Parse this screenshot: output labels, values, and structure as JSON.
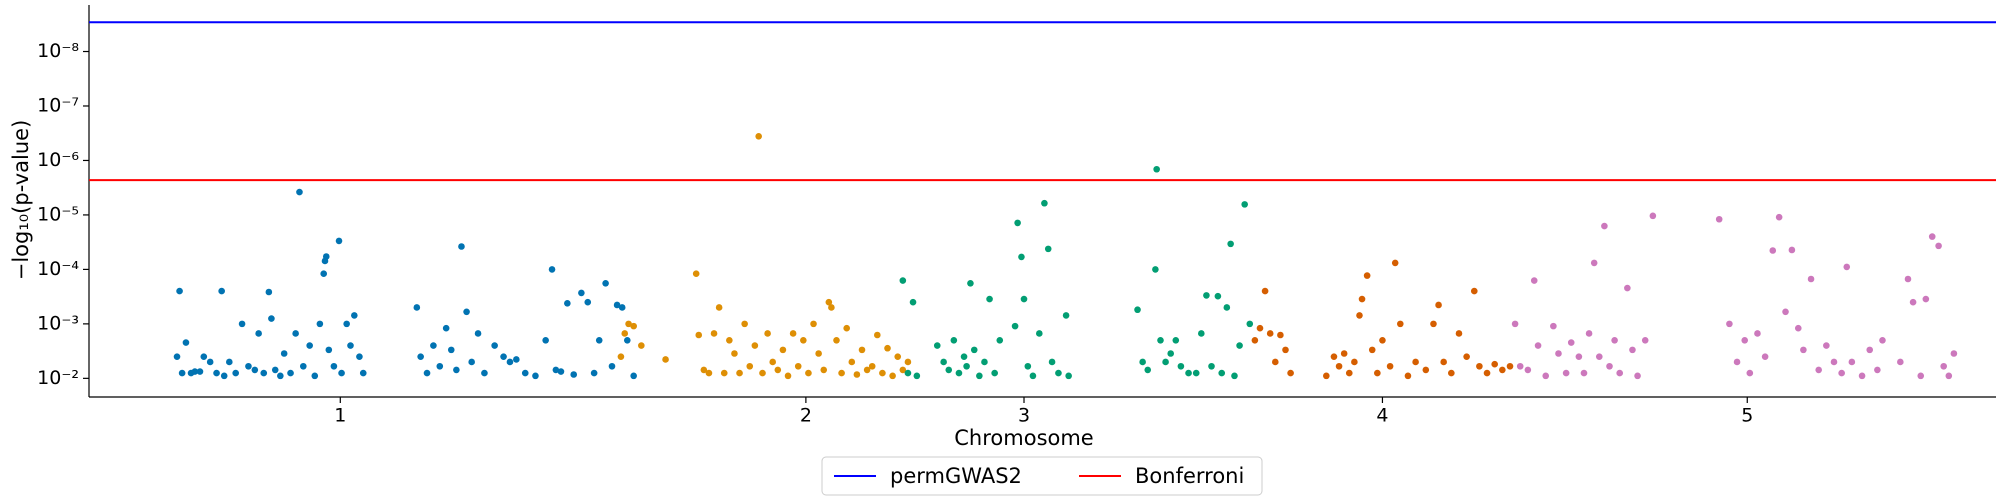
{
  "chart_data": {
    "type": "scatter",
    "xlabel": "Chromosome",
    "ylabel": "−log₁₀(p-value)",
    "yscale": "log",
    "xlim": [
      70,
      1565
    ],
    "ylim": [
      0.022,
      1.4e-09
    ],
    "xticks": [
      {
        "value": 267,
        "label": "1"
      },
      {
        "value": 632,
        "label": "2"
      },
      {
        "value": 803,
        "label": "3"
      },
      {
        "value": 1084,
        "label": "4"
      },
      {
        "value": 1370,
        "label": "5"
      }
    ],
    "yticks": [
      {
        "value": 0.01,
        "label": "10⁻²"
      },
      {
        "value": 0.001,
        "label": "10⁻³"
      },
      {
        "value": 0.0001,
        "label": "10⁻⁴"
      },
      {
        "value": 1e-05,
        "label": "10⁻⁵"
      },
      {
        "value": 1e-06,
        "label": "10⁻⁶"
      },
      {
        "value": 1e-07,
        "label": "10⁻⁷"
      },
      {
        "value": 1e-08,
        "label": "10⁻⁸"
      }
    ],
    "legend": "below",
    "hlines": [
      {
        "name": "permGWAS2",
        "color": "#0000ff",
        "value": 2.9e-09
      },
      {
        "name": "Bonferroni",
        "color": "#ff0000",
        "value": 2.3e-06
      }
    ],
    "series": [
      {
        "color": "#0173b2",
        "x": [
          139,
          141,
          143,
          146,
          150,
          153,
          157,
          160,
          165,
          170,
          174,
          176,
          180,
          185,
          190,
          195,
          200,
          203,
          207,
          211,
          213,
          216,
          220,
          223,
          228,
          232,
          235,
          238,
          243,
          247,
          251,
          254,
          255,
          256,
          258,
          262,
          266,
          268,
          272,
          275,
          278,
          282,
          285,
          327,
          330,
          335,
          340,
          345,
          350,
          354,
          358,
          362,
          366,
          370,
          375,
          380,
          388,
          395,
          400,
          405,
          412,
          420,
          428,
          433,
          436,
          440,
          445,
          450,
          456,
          461,
          466,
          470,
          475,
          480,
          484,
          488,
          492,
          497
        ],
        "values": [
          0.004,
          0.00025,
          0.008,
          0.0022,
          0.008,
          0.0075,
          0.0075,
          0.004,
          0.005,
          0.008,
          0.00025,
          0.009,
          0.005,
          0.008,
          0.001,
          0.006,
          0.007,
          0.0015,
          0.008,
          0.00026,
          0.0008,
          0.007,
          0.009,
          0.0035,
          0.008,
          0.0015,
          3.8e-06,
          0.006,
          0.0025,
          0.009,
          0.001,
          0.00012,
          7e-05,
          5.8e-05,
          0.003,
          0.006,
          3e-05,
          0.008,
          0.001,
          0.0025,
          0.0007,
          0.004,
          0.008,
          0.0005,
          0.004,
          0.008,
          0.0025,
          0.006,
          0.0012,
          0.003,
          0.007,
          3.8e-05,
          0.0006,
          0.005,
          0.0015,
          0.008,
          0.0025,
          0.004,
          0.005,
          0.0045,
          0.008,
          0.009,
          0.002,
          0.0001,
          0.007,
          0.0075,
          0.00042,
          0.0085,
          0.00027,
          0.0004,
          0.008,
          0.002,
          0.00018,
          0.006,
          0.00045,
          0.0005,
          0.002,
          0.009
        ]
      },
      {
        "color": "#de8f05",
        "x": [
          487,
          490,
          493,
          497,
          503,
          522,
          546,
          548,
          552,
          556,
          560,
          564,
          568,
          572,
          576,
          580,
          584,
          588,
          592,
          595,
          598,
          602,
          606,
          610,
          614,
          618,
          622,
          626,
          630,
          634,
          638,
          642,
          646,
          650,
          652,
          656,
          660,
          664,
          668,
          672,
          676,
          680,
          684,
          688,
          692,
          696,
          700,
          704,
          708,
          712
        ],
        "values": [
          0.004,
          0.0015,
          0.001,
          0.0011,
          0.0025,
          0.0045,
          0.00012,
          0.0016,
          0.007,
          0.008,
          0.0015,
          0.0005,
          0.008,
          0.002,
          0.0035,
          0.008,
          0.001,
          0.006,
          0.0025,
          3.6e-07,
          0.008,
          0.0015,
          0.005,
          0.007,
          0.003,
          0.009,
          0.0015,
          0.006,
          0.002,
          0.008,
          0.001,
          0.0035,
          0.007,
          0.0004,
          0.0005,
          0.002,
          0.008,
          0.0012,
          0.005,
          0.0085,
          0.003,
          0.007,
          0.006,
          0.0016,
          0.008,
          0.0028,
          0.009,
          0.004,
          0.007,
          0.005
        ]
      },
      {
        "color": "#029e73",
        "x": [
          708,
          712,
          716,
          719,
          735,
          740,
          744,
          748,
          752,
          756,
          758,
          761,
          764,
          768,
          772,
          776,
          780,
          784,
          796,
          798,
          801,
          803,
          806,
          810,
          815,
          819,
          822,
          825,
          830,
          836,
          838,
          892,
          896,
          900,
          906,
          907,
          910,
          914,
          918,
          922,
          926,
          932,
          938,
          942,
          946,
          950,
          955,
          958,
          962,
          965,
          968,
          972,
          976,
          980
        ],
        "values": [
          0.00016,
          0.008,
          0.0004,
          0.009,
          0.0025,
          0.005,
          0.007,
          0.002,
          0.008,
          0.004,
          0.006,
          0.00018,
          0.003,
          0.009,
          0.005,
          0.00035,
          0.008,
          0.002,
          0.0011,
          1.4e-05,
          5.9e-05,
          0.00035,
          0.006,
          0.009,
          0.0015,
          6.1e-06,
          4.2e-05,
          0.005,
          0.008,
          0.0007,
          0.009,
          0.00055,
          0.005,
          0.007,
          0.0001,
          1.45e-06,
          0.002,
          0.005,
          0.0035,
          0.002,
          0.006,
          0.008,
          0.008,
          0.0015,
          0.0003,
          0.006,
          0.00031,
          0.008,
          0.0005,
          3.4e-05,
          0.009,
          0.0025,
          6.4e-06,
          0.001
        ]
      },
      {
        "color": "#d55e00",
        "x": [
          984,
          988,
          992,
          996,
          1000,
          1004,
          1008,
          1012,
          1040,
          1046,
          1050,
          1054,
          1058,
          1062,
          1066,
          1068,
          1072,
          1076,
          1080,
          1084,
          1090,
          1094,
          1098,
          1104,
          1110,
          1118,
          1124,
          1128,
          1132,
          1138,
          1144,
          1150,
          1156,
          1160,
          1166,
          1172,
          1178,
          1184
        ],
        "values": [
          0.002,
          0.0012,
          0.00025,
          0.0015,
          0.005,
          0.0016,
          0.003,
          0.008,
          0.009,
          0.004,
          0.006,
          0.0035,
          0.008,
          0.005,
          0.0007,
          0.00035,
          0.00013,
          0.003,
          0.008,
          0.002,
          0.006,
          7.6e-05,
          0.001,
          0.009,
          0.005,
          0.007,
          0.001,
          0.00045,
          0.005,
          0.008,
          0.0015,
          0.004,
          0.00025,
          0.006,
          0.008,
          0.0055,
          0.007,
          0.006
        ]
      },
      {
        "color": "#cc78bc",
        "x": [
          1188,
          1192,
          1198,
          1203,
          1206,
          1212,
          1218,
          1222,
          1228,
          1232,
          1238,
          1242,
          1246,
          1250,
          1254,
          1258,
          1262,
          1266,
          1270,
          1276,
          1280,
          1284,
          1290,
          1296,
          1348,
          1356,
          1362,
          1368,
          1372,
          1378,
          1384,
          1390,
          1395,
          1400,
          1405,
          1410,
          1414,
          1420,
          1426,
          1432,
          1438,
          1444,
          1448,
          1452,
          1460,
          1466,
          1472,
          1476,
          1490,
          1496,
          1500,
          1506,
          1510,
          1515,
          1520,
          1524,
          1528,
          1532
        ],
        "values": [
          0.001,
          0.006,
          0.007,
          0.00016,
          0.0025,
          0.009,
          0.0011,
          0.0035,
          0.008,
          0.0022,
          0.004,
          0.008,
          0.0015,
          7.6e-05,
          0.004,
          1.6e-05,
          0.006,
          0.002,
          0.008,
          0.00022,
          0.003,
          0.009,
          0.002,
          1.04e-05,
          1.2e-05,
          0.001,
          0.005,
          0.002,
          0.008,
          0.0015,
          0.004,
          4.5e-05,
          1.1e-05,
          0.0006,
          4.4e-05,
          0.0012,
          0.003,
          0.00015,
          0.007,
          0.0025,
          0.005,
          0.008,
          9e-05,
          0.005,
          0.009,
          0.003,
          0.007,
          0.002,
          0.005,
          0.00015,
          0.0004,
          0.009,
          0.00035,
          2.5e-05,
          3.7e-05,
          0.006,
          0.009,
          0.0035
        ]
      }
    ]
  }
}
